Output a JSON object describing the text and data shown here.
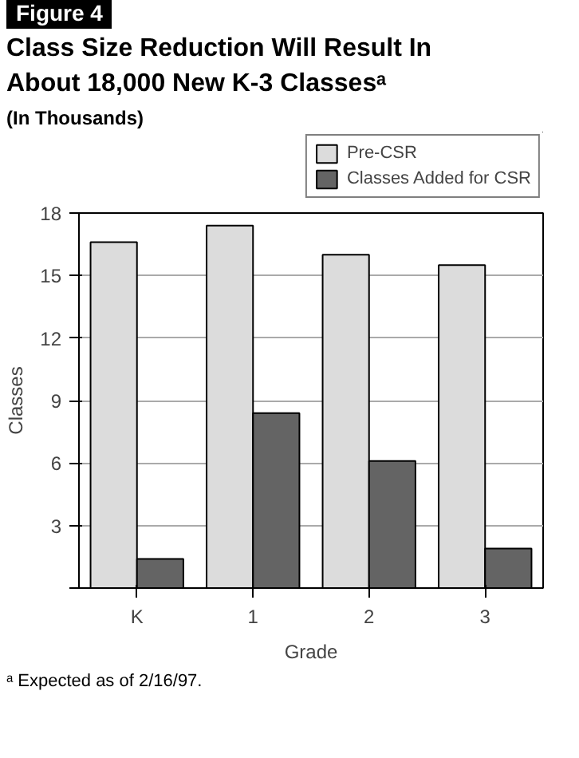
{
  "chart_data": {
    "type": "bar",
    "title": "Class Size Reduction Will Result In About 18,000 New K-3 Classesᵃ",
    "subtitle": "(In Thousands)",
    "xlabel": "Grade",
    "ylabel": "Classes",
    "annotations": [
      "Figure 4",
      "ᵃ Expected as of 2/16/97."
    ],
    "categories": [
      "K",
      "1",
      "2",
      "3"
    ],
    "series": [
      {
        "name": "Pre-CSR",
        "color": "#dcdcdc",
        "values": [
          16.6,
          17.4,
          16.0,
          15.5
        ]
      },
      {
        "name": "Classes Added for CSR",
        "color": "#646464",
        "values": [
          1.4,
          8.4,
          6.1,
          1.9
        ]
      }
    ],
    "ylim": [
      0,
      18
    ],
    "yticks": [
      {
        "value": 0,
        "label": null
      },
      3,
      6,
      9,
      12,
      15,
      18
    ],
    "grid": "y",
    "legend": "top right"
  }
}
